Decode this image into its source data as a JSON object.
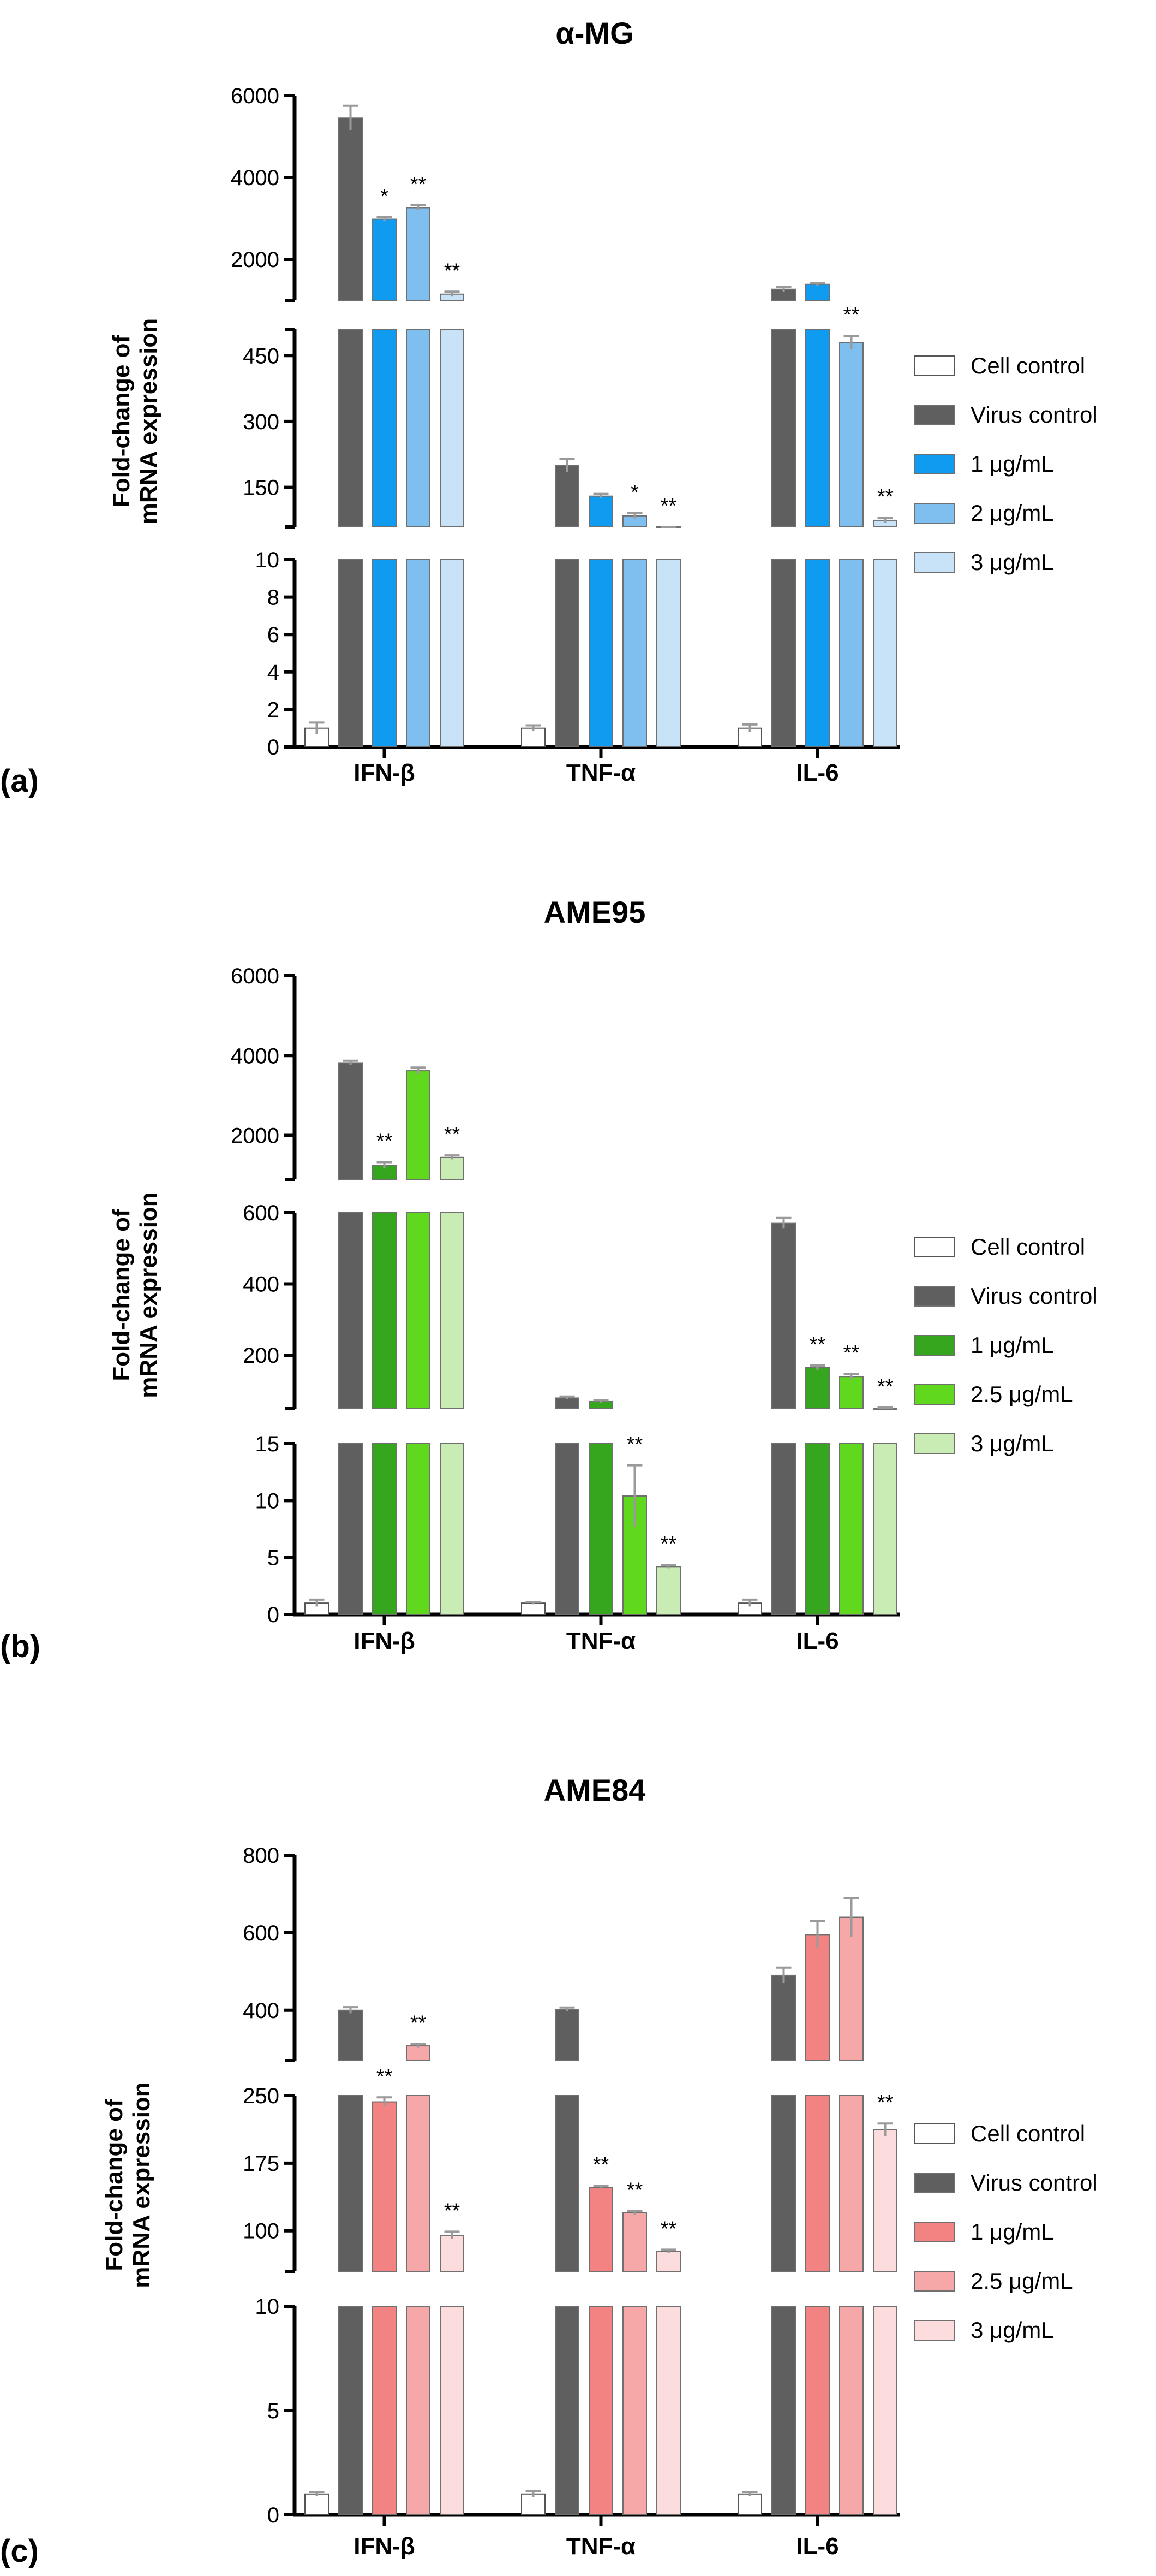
{
  "chart_data": [
    {
      "type": "bar",
      "panel_label": "(a)",
      "title": "α-MG",
      "ylabel": [
        "Fold-change of",
        "mRNA expression"
      ],
      "xlabel": "",
      "categories": [
        "IFN-β",
        "TNF-α",
        "IL-6"
      ],
      "y_axis_segments": [
        {
          "range": [
            0,
            10
          ],
          "ticks": [
            "0",
            "2",
            "4",
            "6",
            "8",
            "10"
          ]
        },
        {
          "range": [
            60,
            510
          ],
          "ticks": [
            "150",
            "300",
            "450"
          ]
        },
        {
          "range": [
            1000,
            6000
          ],
          "ticks": [
            "2000",
            "4000",
            "6000"
          ]
        }
      ],
      "series": [
        {
          "name": "Cell control",
          "color": "#ffffff",
          "values": [
            1,
            1,
            1
          ],
          "errors": [
            0.3,
            0.15,
            0.2
          ],
          "stars": [
            "",
            "",
            ""
          ]
        },
        {
          "name": "Virus control",
          "color": "#5f5f5f",
          "values": [
            5450,
            200,
            1270
          ],
          "errors": [
            300,
            15,
            60
          ],
          "stars": [
            "",
            "",
            ""
          ]
        },
        {
          "name": "1  μg/mL",
          "color": "#0f9cf0",
          "values": [
            2980,
            130,
            1390
          ],
          "errors": [
            50,
            5,
            30
          ],
          "stars": [
            "*",
            "",
            ""
          ]
        },
        {
          "name": "2  μg/mL",
          "color": "#7ebff0",
          "values": [
            3260,
            85,
            480
          ],
          "errors": [
            60,
            6,
            15
          ],
          "stars": [
            "**",
            "*",
            "**"
          ]
        },
        {
          "name": "3  μg/mL",
          "color": "#c8e2f8",
          "values": [
            1150,
            35,
            75
          ],
          "errors": [
            60,
            3,
            6
          ],
          "stars": [
            "**",
            "**",
            "**"
          ]
        }
      ],
      "legend_position": "right"
    },
    {
      "type": "bar",
      "panel_label": "(b)",
      "title": "AME95",
      "ylabel": [
        "Fold-change of",
        "mRNA expression"
      ],
      "xlabel": "",
      "categories": [
        "IFN-β",
        "TNF-α",
        "IL-6"
      ],
      "y_axis_segments": [
        {
          "range": [
            0,
            15
          ],
          "ticks": [
            "0",
            "5",
            "10",
            "15"
          ]
        },
        {
          "range": [
            50,
            600
          ],
          "ticks": [
            "200",
            "400",
            "600"
          ]
        },
        {
          "range": [
            900,
            6000
          ],
          "ticks": [
            "2000",
            "4000",
            "6000"
          ]
        }
      ],
      "series": [
        {
          "name": "Cell control",
          "color": "#ffffff",
          "values": [
            1,
            1,
            1
          ],
          "errors": [
            0.3,
            0.1,
            0.3
          ],
          "stars": [
            "",
            "",
            ""
          ]
        },
        {
          "name": "Virus control",
          "color": "#5f5f5f",
          "values": [
            3820,
            80,
            570
          ],
          "errors": [
            50,
            4,
            15
          ],
          "stars": [
            "",
            "",
            ""
          ]
        },
        {
          "name": "1  μg/mL",
          "color": "#36a61e",
          "values": [
            1250,
            70,
            165
          ],
          "errors": [
            80,
            4,
            6
          ],
          "stars": [
            "**",
            "",
            "**"
          ]
        },
        {
          "name": "2.5  μg/mL",
          "color": "#5fd81e",
          "values": [
            3620,
            10.4,
            140
          ],
          "errors": [
            80,
            2.7,
            8
          ],
          "stars": [
            "",
            "**",
            "**"
          ]
        },
        {
          "name": "3  μg/mL",
          "color": "#c8ecb4",
          "values": [
            1450,
            4.2,
            50
          ],
          "errors": [
            50,
            0.15,
            3
          ],
          "stars": [
            "**",
            "**",
            "**"
          ]
        }
      ],
      "legend_position": "right"
    },
    {
      "type": "bar",
      "panel_label": "(c)",
      "title": "AME84",
      "ylabel": [
        "Fold-change of",
        "mRNA expression"
      ],
      "xlabel": "",
      "categories": [
        "IFN-β",
        "TNF-α",
        "IL-6"
      ],
      "y_axis_segments": [
        {
          "range": [
            0,
            10
          ],
          "ticks": [
            "0",
            "5",
            "10"
          ]
        },
        {
          "range": [
            55,
            250
          ],
          "ticks": [
            "100",
            "175",
            "250"
          ]
        },
        {
          "range": [
            270,
            800
          ],
          "ticks": [
            "400",
            "600",
            "800"
          ]
        }
      ],
      "series": [
        {
          "name": "Cell control",
          "color": "#ffffff",
          "values": [
            1,
            1,
            1
          ],
          "errors": [
            0.1,
            0.15,
            0.1
          ],
          "stars": [
            "",
            "",
            ""
          ]
        },
        {
          "name": "Virus control",
          "color": "#5f5f5f",
          "values": [
            400,
            402,
            490
          ],
          "errors": [
            8,
            5,
            20
          ],
          "stars": [
            "",
            "",
            ""
          ]
        },
        {
          "name": "1  μg/mL",
          "color": "#f38283",
          "values": [
            243,
            148,
            595
          ],
          "errors": [
            5,
            2,
            35
          ],
          "stars": [
            "**",
            "**",
            ""
          ]
        },
        {
          "name": "2.5  μg/mL",
          "color": "#f6a7a8",
          "values": [
            308,
            120,
            640
          ],
          "errors": [
            5,
            2,
            50
          ],
          "stars": [
            "**",
            "**",
            ""
          ]
        },
        {
          "name": "3  μg/mL",
          "color": "#fcdcdc",
          "values": [
            95,
            77,
            212
          ],
          "errors": [
            4,
            2,
            7
          ],
          "stars": [
            "**",
            "**",
            "**"
          ]
        }
      ],
      "legend_position": "right"
    }
  ]
}
